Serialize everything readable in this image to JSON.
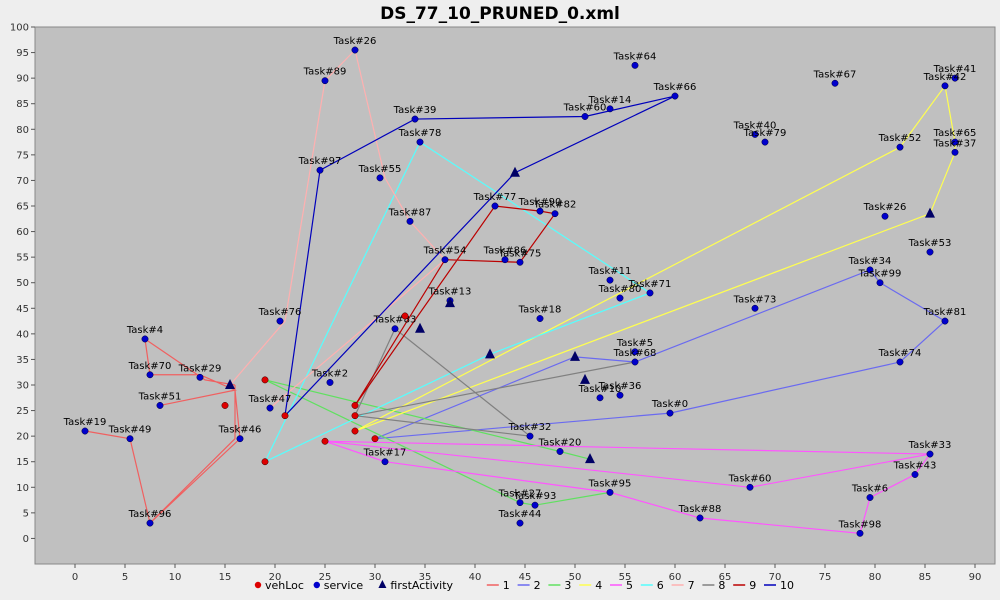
{
  "chart_data": {
    "type": "scatter",
    "title": "DS_77_10_PRUNED_0.xml",
    "xlim": [
      -4,
      92
    ],
    "ylim": [
      -5,
      100
    ],
    "x_ticks": [
      0,
      5,
      10,
      15,
      20,
      25,
      30,
      35,
      40,
      45,
      50,
      55,
      60,
      65,
      70,
      75,
      80,
      85,
      90
    ],
    "y_ticks": [
      0,
      5,
      10,
      15,
      20,
      25,
      30,
      35,
      40,
      45,
      50,
      55,
      60,
      65,
      70,
      75,
      80,
      85,
      90,
      95,
      100
    ],
    "grid": false,
    "legend_position": "bottom",
    "colors": {
      "plot_bg": "#c0c0c0",
      "veh": "#dd0000",
      "service": "#0000cc",
      "first": "#000066",
      "routes": {
        "1": "#f06060",
        "2": "#6a6af0",
        "3": "#60e060",
        "4": "#ffff50",
        "5": "#ff55ff",
        "6": "#55ffff",
        "7": "#ffb0b0",
        "8": "#808080",
        "9": "#bb0000",
        "10": "#0000bb"
      }
    },
    "legend": [
      "vehLoc",
      "service",
      "firstActivity",
      "1",
      "2",
      "3",
      "4",
      "5",
      "6",
      "7",
      "8",
      "9",
      "10"
    ],
    "tasks": [
      {
        "label": "Task#26",
        "x": 28,
        "y": 95.5
      },
      {
        "label": "Task#89",
        "x": 25,
        "y": 89.5
      },
      {
        "label": "Task#64",
        "x": 56,
        "y": 92.5
      },
      {
        "label": "Task#67",
        "x": 76,
        "y": 89
      },
      {
        "label": "Task#41",
        "x": 88,
        "y": 90
      },
      {
        "label": "Task#42",
        "x": 87,
        "y": 88.5
      },
      {
        "label": "Task#66",
        "x": 60,
        "y": 86.5
      },
      {
        "label": "Task#39",
        "x": 34,
        "y": 82
      },
      {
        "label": "Task#60",
        "x": 51,
        "y": 82.5
      },
      {
        "label": "Task#14",
        "x": 53.5,
        "y": 84
      },
      {
        "label": "Task#40",
        "x": 68,
        "y": 79
      },
      {
        "label": "Task#79",
        "x": 69,
        "y": 77.5
      },
      {
        "label": "Task#78",
        "x": 34.5,
        "y": 77.5
      },
      {
        "label": "Task#65",
        "x": 88,
        "y": 77.5
      },
      {
        "label": "Task#52",
        "x": 82.5,
        "y": 76.5
      },
      {
        "label": "Task#37",
        "x": 88,
        "y": 75.5
      },
      {
        "label": "Task#97",
        "x": 24.5,
        "y": 72
      },
      {
        "label": "Task#55",
        "x": 30.5,
        "y": 70.5
      },
      {
        "label": "Task#77",
        "x": 42,
        "y": 65
      },
      {
        "label": "Task#90",
        "x": 46.5,
        "y": 64
      },
      {
        "label": "Task#82",
        "x": 48,
        "y": 63.5
      },
      {
        "label": "Task#26b",
        "x": 81,
        "y": 63
      },
      {
        "label": "Task#87",
        "x": 33.5,
        "y": 62
      },
      {
        "label": "Task#53",
        "x": 85.5,
        "y": 56
      },
      {
        "label": "Task#54",
        "x": 37,
        "y": 54.5
      },
      {
        "label": "Task#86",
        "x": 43,
        "y": 54.5
      },
      {
        "label": "Task#75",
        "x": 44.5,
        "y": 54
      },
      {
        "label": "Task#11",
        "x": 53.5,
        "y": 50.5
      },
      {
        "label": "Task#34",
        "x": 79.5,
        "y": 52.5
      },
      {
        "label": "Task#99",
        "x": 80.5,
        "y": 50
      },
      {
        "label": "Task#71",
        "x": 57.5,
        "y": 48
      },
      {
        "label": "Task#80",
        "x": 54.5,
        "y": 47
      },
      {
        "label": "Task#73",
        "x": 68,
        "y": 45
      },
      {
        "label": "Task#18",
        "x": 46.5,
        "y": 43
      },
      {
        "label": "Task#76",
        "x": 20.5,
        "y": 42.5
      },
      {
        "label": "Task#81",
        "x": 87,
        "y": 42.5
      },
      {
        "label": "Task#83",
        "x": 32,
        "y": 41
      },
      {
        "label": "Task#4",
        "x": 7,
        "y": 39
      },
      {
        "label": "Task#5",
        "x": 56,
        "y": 36.5
      },
      {
        "label": "Task#68",
        "x": 56,
        "y": 34.5
      },
      {
        "label": "Task#70",
        "x": 7.5,
        "y": 32
      },
      {
        "label": "Task#29",
        "x": 12.5,
        "y": 31.5
      },
      {
        "label": "Task#74",
        "x": 82.5,
        "y": 34.5
      },
      {
        "label": "Task#2",
        "x": 25.5,
        "y": 30.5
      },
      {
        "label": "Task#51",
        "x": 8.5,
        "y": 26
      },
      {
        "label": "Task#10",
        "x": 52.5,
        "y": 27.5
      },
      {
        "label": "Task#36",
        "x": 54.5,
        "y": 28
      },
      {
        "label": "Task#47",
        "x": 19.5,
        "y": 25.5
      },
      {
        "label": "Task#0",
        "x": 59.5,
        "y": 24.5
      },
      {
        "label": "Task#19",
        "x": 1,
        "y": 21
      },
      {
        "label": "Task#49",
        "x": 5.5,
        "y": 19.5
      },
      {
        "label": "Task#46",
        "x": 16.5,
        "y": 19.5
      },
      {
        "label": "Task#32",
        "x": 45.5,
        "y": 20
      },
      {
        "label": "Task#20",
        "x": 48.5,
        "y": 17
      },
      {
        "label": "Task#33",
        "x": 85.5,
        "y": 16.5
      },
      {
        "label": "Task#17",
        "x": 31,
        "y": 15
      },
      {
        "label": "Task#43",
        "x": 84,
        "y": 12.5
      },
      {
        "label": "Task#60b",
        "x": 67.5,
        "y": 10
      },
      {
        "label": "Task#95",
        "x": 53.5,
        "y": 9
      },
      {
        "label": "Task#6",
        "x": 79.5,
        "y": 8
      },
      {
        "label": "Task#27",
        "x": 44.5,
        "y": 7
      },
      {
        "label": "Task#93",
        "x": 46,
        "y": 6.5
      },
      {
        "label": "Task#88",
        "x": 62.5,
        "y": 4
      },
      {
        "label": "Task#96",
        "x": 7.5,
        "y": 3
      },
      {
        "label": "Task#44",
        "x": 44.5,
        "y": 3
      },
      {
        "label": "Task#98",
        "x": 78.5,
        "y": 1
      },
      {
        "label": "Task#13",
        "x": 37.5,
        "y": 46.5
      }
    ],
    "vehicles": [
      {
        "x": 19,
        "y": 31
      },
      {
        "x": 15,
        "y": 26
      },
      {
        "x": 21,
        "y": 24
      },
      {
        "x": 28,
        "y": 26
      },
      {
        "x": 28,
        "y": 24
      },
      {
        "x": 28,
        "y": 21
      },
      {
        "x": 30,
        "y": 19.5
      },
      {
        "x": 25,
        "y": 19
      },
      {
        "x": 19,
        "y": 15
      },
      {
        "x": 33,
        "y": 43.5
      }
    ],
    "first_activities": [
      {
        "x": 15.5,
        "y": 30
      },
      {
        "x": 44,
        "y": 71.5
      },
      {
        "x": 34.5,
        "y": 41
      },
      {
        "x": 37.5,
        "y": 46
      },
      {
        "x": 41.5,
        "y": 36
      },
      {
        "x": 50,
        "y": 35.5
      },
      {
        "x": 51,
        "y": 31
      },
      {
        "x": 51.5,
        "y": 15.5
      },
      {
        "x": 85.5,
        "y": 63.5
      }
    ],
    "routes": [
      {
        "name": "1",
        "points": [
          [
            16,
            30
          ],
          [
            13,
            31
          ],
          [
            7,
            39
          ],
          [
            7.5,
            32
          ],
          [
            12.5,
            32
          ],
          [
            16,
            29
          ],
          [
            8.5,
            26
          ],
          [
            16,
            29
          ],
          [
            16.5,
            19.5
          ],
          [
            7.5,
            3
          ],
          [
            5.5,
            19.5
          ],
          [
            1,
            21
          ],
          [
            5.5,
            19.5
          ],
          [
            7.5,
            3
          ],
          [
            16,
            19.5
          ],
          [
            16,
            30
          ]
        ]
      },
      {
        "name": "2",
        "points": [
          [
            30,
            19.5
          ],
          [
            59.5,
            24.5
          ],
          [
            82.5,
            34.5
          ],
          [
            87,
            42.5
          ],
          [
            80.5,
            50
          ],
          [
            79.5,
            52.5
          ],
          [
            56,
            34.5
          ],
          [
            50,
            35.5
          ],
          [
            30,
            19.5
          ]
        ]
      },
      {
        "name": "3",
        "points": [
          [
            19,
            31
          ],
          [
            48.5,
            17
          ],
          [
            51.5,
            15.5
          ]
        ]
      },
      {
        "name": "3b",
        "points": [
          [
            19,
            31
          ],
          [
            44.5,
            7
          ],
          [
            46,
            6.5
          ],
          [
            53.5,
            9
          ]
        ]
      },
      {
        "name": "4",
        "points": [
          [
            28,
            21
          ],
          [
            82.5,
            76.5
          ],
          [
            87,
            88.5
          ],
          [
            88,
            77.5
          ],
          [
            88,
            75.5
          ],
          [
            85.5,
            63.5
          ],
          [
            28,
            21
          ]
        ]
      },
      {
        "name": "5",
        "points": [
          [
            25,
            19
          ],
          [
            85.5,
            16.5
          ],
          [
            84,
            12.5
          ],
          [
            79.5,
            8
          ],
          [
            78.5,
            1
          ],
          [
            62.5,
            4
          ],
          [
            53.5,
            9
          ],
          [
            31,
            15
          ],
          [
            25,
            19
          ],
          [
            67.5,
            10
          ],
          [
            85.5,
            16.5
          ]
        ]
      },
      {
        "name": "6",
        "points": [
          [
            19,
            15
          ],
          [
            34.5,
            77.5
          ],
          [
            57.5,
            48
          ],
          [
            41.5,
            36
          ],
          [
            19,
            15
          ]
        ]
      },
      {
        "name": "7",
        "points": [
          [
            15.5,
            30
          ],
          [
            21,
            42.5
          ],
          [
            25,
            89.5
          ],
          [
            28,
            95.5
          ],
          [
            31,
            70.5
          ],
          [
            33.5,
            62
          ],
          [
            37,
            54.5
          ],
          [
            19.5,
            25.5
          ]
        ]
      },
      {
        "name": "8",
        "points": [
          [
            28,
            24
          ],
          [
            32,
            41
          ],
          [
            45.5,
            20
          ],
          [
            28,
            24
          ],
          [
            56,
            34.5
          ]
        ]
      },
      {
        "name": "9",
        "points": [
          [
            28,
            26
          ],
          [
            42,
            65
          ],
          [
            46.5,
            64
          ],
          [
            48,
            63.5
          ],
          [
            44.5,
            54
          ],
          [
            37,
            54.5
          ],
          [
            28,
            26
          ]
        ]
      },
      {
        "name": "10",
        "points": [
          [
            21,
            24
          ],
          [
            24.5,
            72
          ],
          [
            34,
            82
          ],
          [
            51,
            82.5
          ],
          [
            60,
            86.5
          ],
          [
            44,
            71.5
          ],
          [
            21,
            24
          ]
        ]
      }
    ]
  }
}
